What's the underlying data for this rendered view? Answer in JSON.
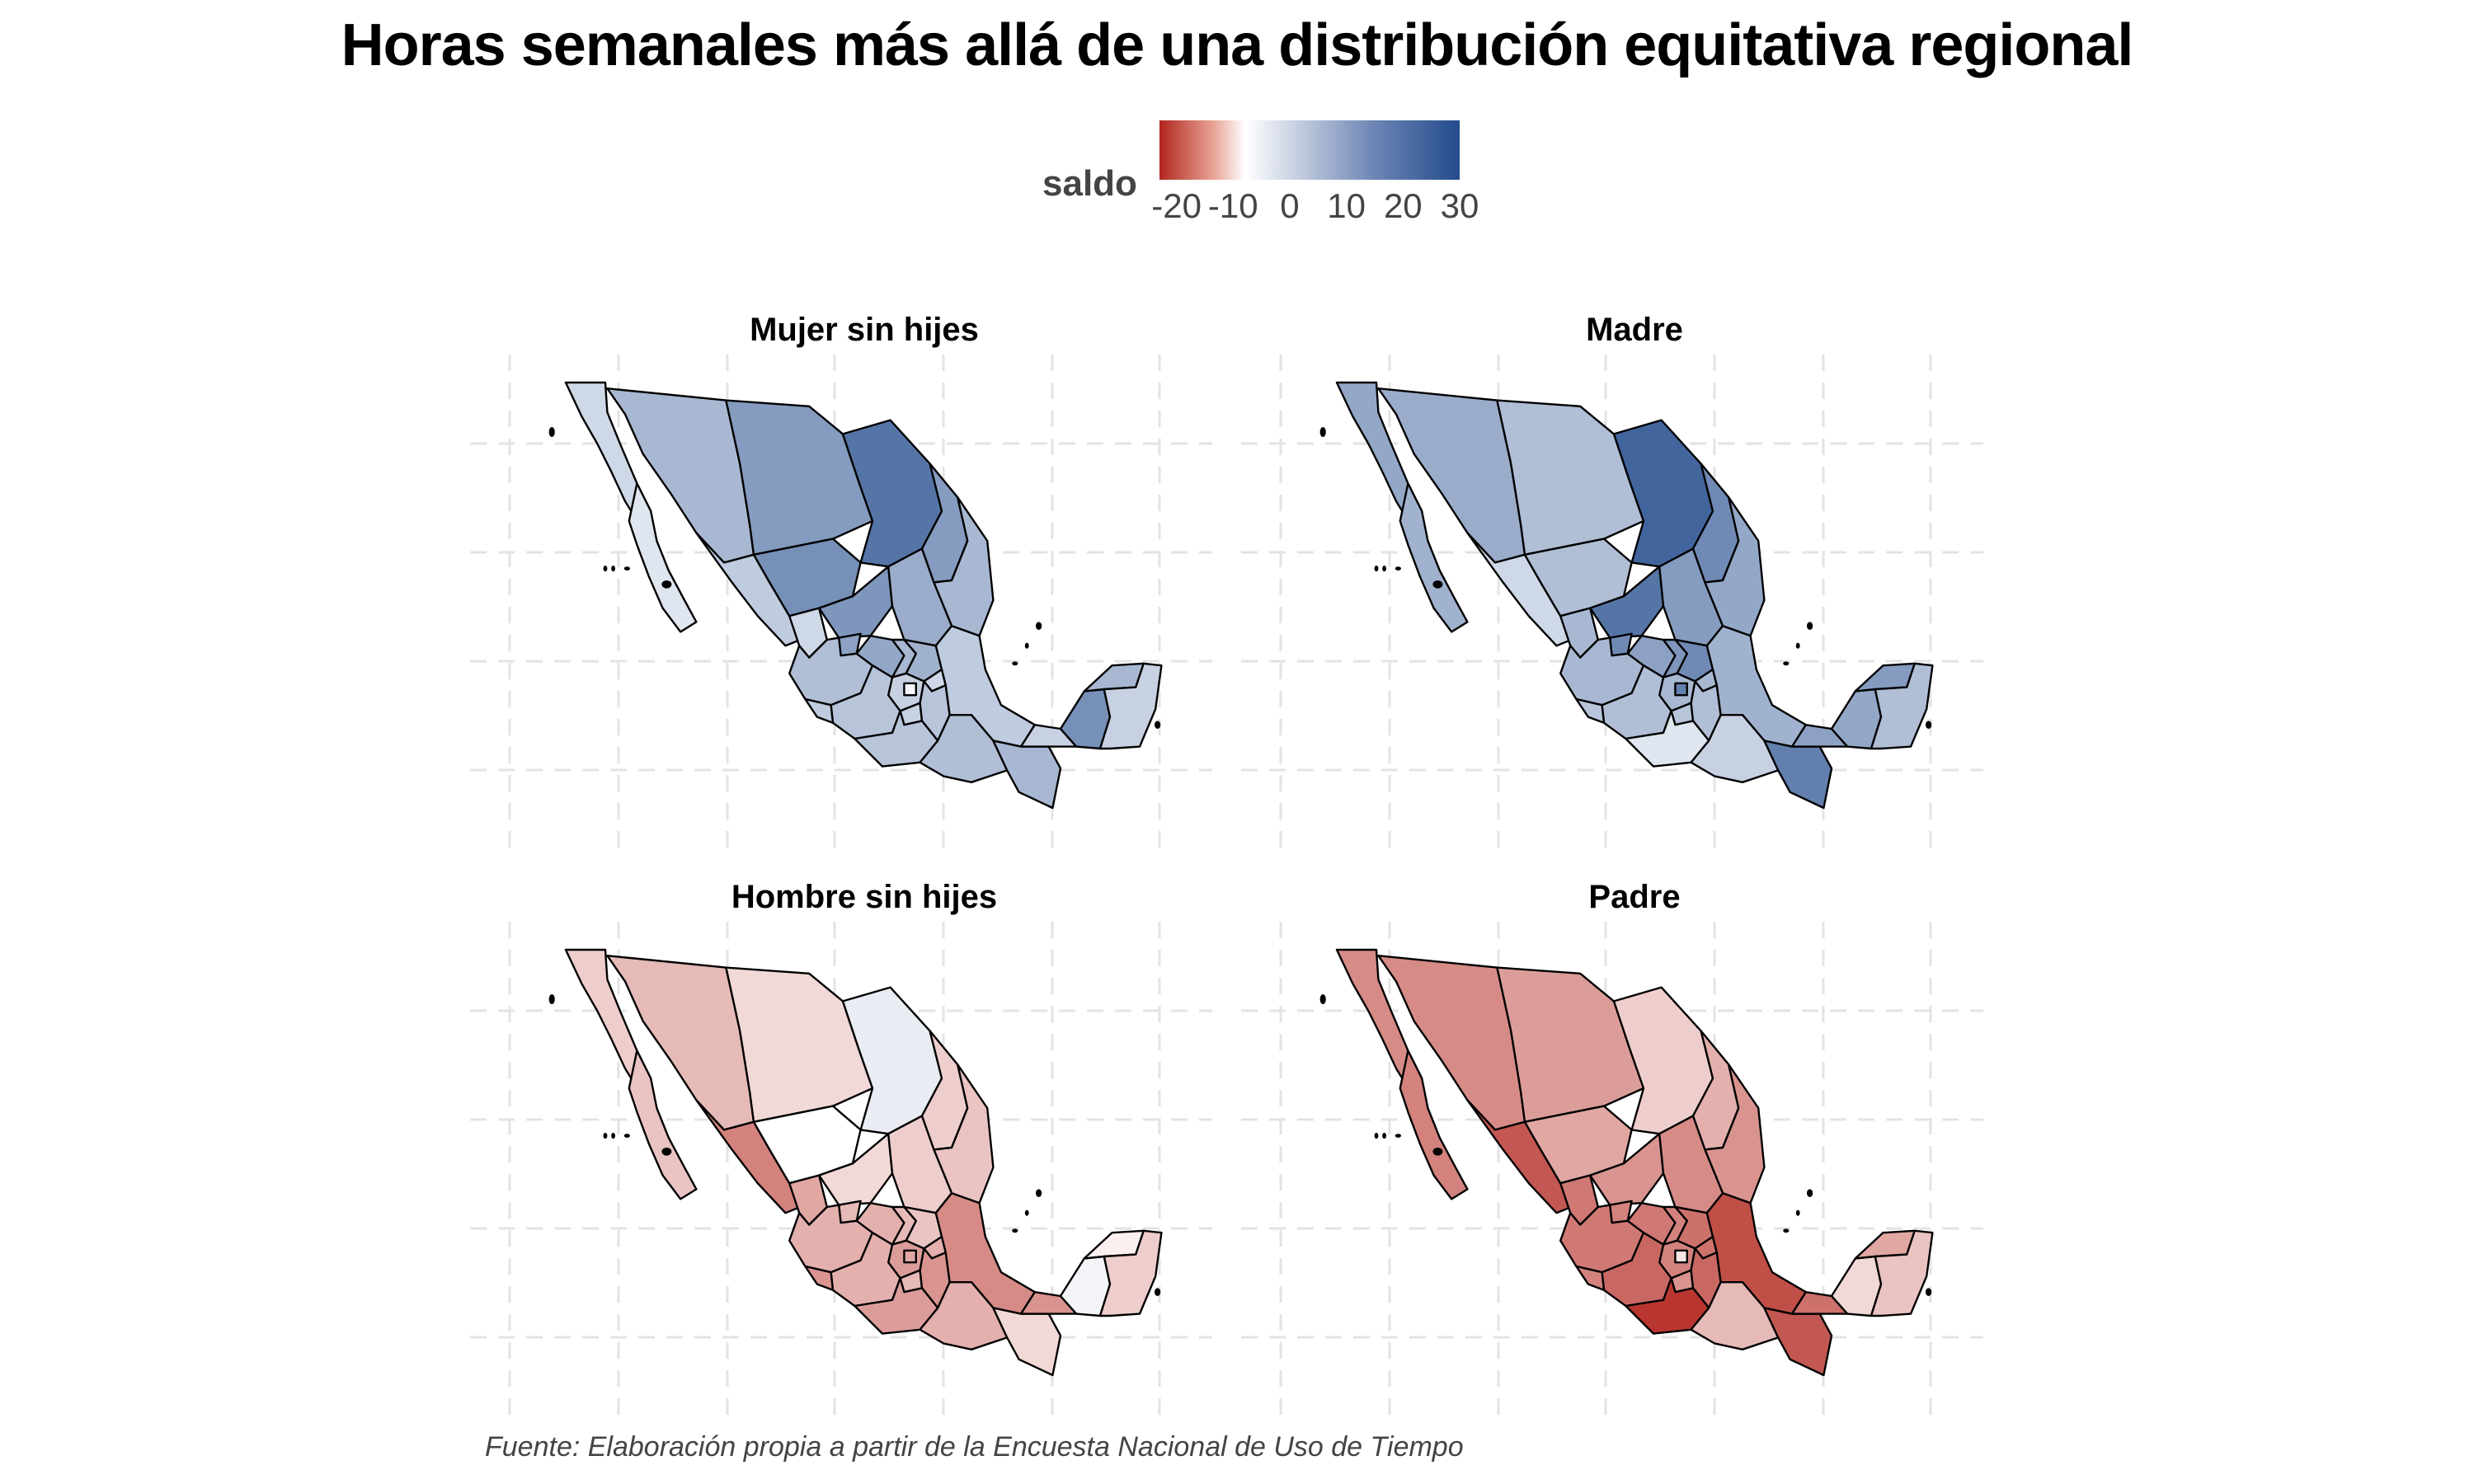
{
  "title": "Horas semanales más allá de una distribución equitativa regional",
  "legend": {
    "label": "saldo",
    "ticks": [
      "-20",
      "-10",
      "0",
      "10",
      "20",
      "30"
    ],
    "tick_values": [
      -20,
      -10,
      0,
      10,
      20,
      30
    ],
    "range": [
      -23,
      30
    ],
    "colors": {
      "low": "#b2261e",
      "mid": "#ffffff",
      "high": "#234b8c"
    }
  },
  "caption": "Fuente: Elaboración propia a partir de la Encuesta Nacional de Uso de Tiempo",
  "chart_data": {
    "type": "choropleth",
    "legend_placement": "top",
    "grid": true,
    "panels": [
      {
        "title": "Mujer sin hijes",
        "values": {
          "bcn": 5,
          "bcs": 3,
          "son": 10,
          "chh": 15,
          "coa": 22,
          "nle": 15,
          "tam": 10,
          "sin": 7,
          "dur": 17,
          "zac": 16,
          "slp": 12,
          "nay": 5,
          "ags": 14,
          "jal": 9,
          "gua": 13,
          "qro": 10,
          "hgo": 11,
          "mex": 6,
          "cdmx": 1,
          "mor": 6,
          "tla": 5,
          "pue": 8,
          "ver": 7,
          "mic": 8,
          "col": 7,
          "gro": 8,
          "oax": 9,
          "chp": 10,
          "tab": 6,
          "cam": 17,
          "yuc": 10,
          "roo": 6
        }
      },
      {
        "title": "Madre",
        "values": {
          "bcn": 13,
          "bcs": 11,
          "son": 12,
          "chh": 9,
          "coa": 25,
          "nle": 18,
          "tam": 13,
          "sin": 5,
          "dur": 9,
          "zac": 22,
          "slp": 15,
          "nay": 10,
          "ags": 18,
          "jal": 10,
          "gua": 14,
          "qro": 16,
          "hgo": 18,
          "mex": 10,
          "cdmx": 20,
          "mor": 8,
          "tla": 10,
          "pue": 9,
          "ver": 11,
          "mic": 9,
          "col": 8,
          "gro": 3,
          "oax": 6,
          "chp": 20,
          "tab": 14,
          "cam": 13,
          "yuc": 15,
          "roo": 9
        }
      },
      {
        "title": "Hombre sin hijes",
        "values": {
          "bcn": -4,
          "bcs": -5,
          "son": -6,
          "chh": -3,
          "coa": 2,
          "nle": -4,
          "tam": -5,
          "sin": -12,
          "dur": 0,
          "zac": -3,
          "slp": -4,
          "nay": -8,
          "ags": -6,
          "jal": -7,
          "gua": -7,
          "qro": -6,
          "hgo": -5,
          "mex": -9,
          "cdmx": -8,
          "mor": -6,
          "tla": -7,
          "pue": -10,
          "ver": -11,
          "mic": -7,
          "col": -10,
          "gro": -9,
          "oax": -7,
          "chp": -3,
          "tab": -10,
          "cam": 1,
          "yuc": -1,
          "roo": -4
        }
      },
      {
        "title": "Padre",
        "values": {
          "bcn": -11,
          "bcs": -12,
          "son": -11,
          "chh": -9,
          "coa": -4,
          "nle": -7,
          "tam": -10,
          "sin": -17,
          "dur": -8,
          "zac": -10,
          "slp": -11,
          "nay": -13,
          "ags": -12,
          "jal": -13,
          "gua": -13,
          "qro": -12,
          "hgo": -14,
          "mex": -12,
          "cdmx": -2,
          "mor": -10,
          "tla": -14,
          "pue": -15,
          "ver": -18,
          "mic": -15,
          "col": -12,
          "gro": -21,
          "oax": -6,
          "chp": -17,
          "tab": -14,
          "cam": -3,
          "yuc": -8,
          "roo": -5
        }
      }
    ]
  }
}
